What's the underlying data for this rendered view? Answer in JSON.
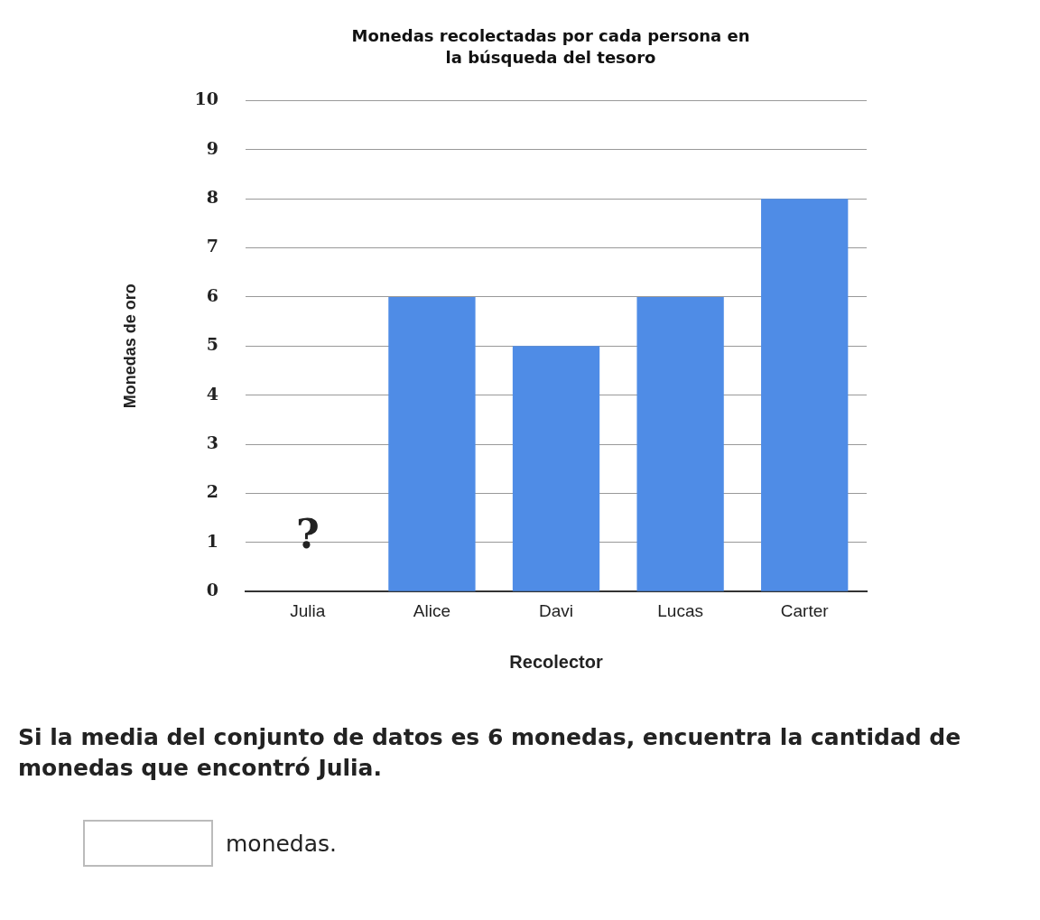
{
  "chart_data": {
    "type": "bar",
    "title": "Monedas recolectadas por cada persona en la búsqueda del tesoro",
    "xlabel": "Recolector",
    "ylabel": "Monedas de oro",
    "categories": [
      "Julia",
      "Alice",
      "Davi",
      "Lucas",
      "Carter"
    ],
    "values": [
      null,
      6,
      5,
      6,
      8
    ],
    "color": "#4f8ce6",
    "ylim": [
      0,
      10
    ],
    "yticks": [
      0,
      1,
      2,
      3,
      4,
      5,
      6,
      7,
      8,
      9,
      10
    ],
    "grid": "y",
    "legend": false,
    "annotations": [
      "?",
      "Si la media del conjunto de datos es 6 monedas, encuentra la cantidad de monedas que encontró Julia.",
      "monedas."
    ]
  }
}
